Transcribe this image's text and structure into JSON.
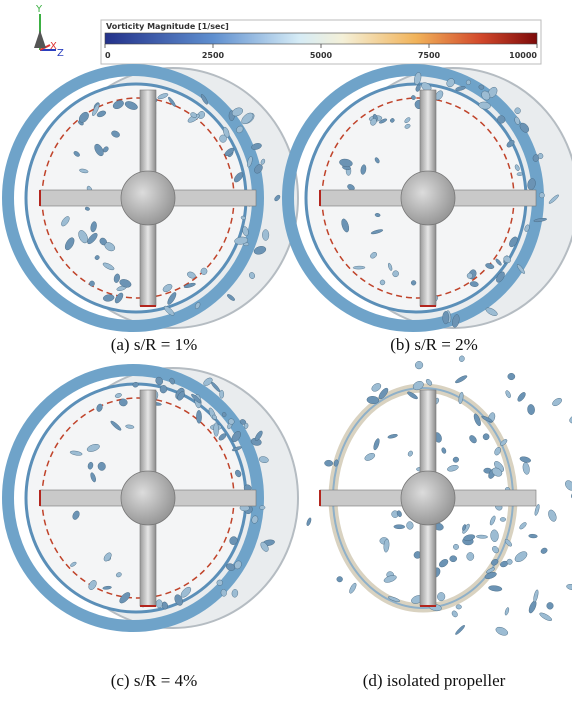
{
  "triad": {
    "y": "Y",
    "x": "X",
    "z": "Z"
  },
  "colorbar": {
    "title": "Vorticity Magnitude [1/sec]",
    "lim": [
      0,
      10000
    ],
    "ticks": [
      0,
      2500,
      5000,
      7500,
      10000
    ]
  },
  "panels": [
    {
      "caption": "(a) s/R = 1%"
    },
    {
      "caption": "(b) s/R = 2%"
    },
    {
      "caption": "(c) s/R = 4%"
    },
    {
      "caption": "(d) isolated propeller"
    }
  ]
}
